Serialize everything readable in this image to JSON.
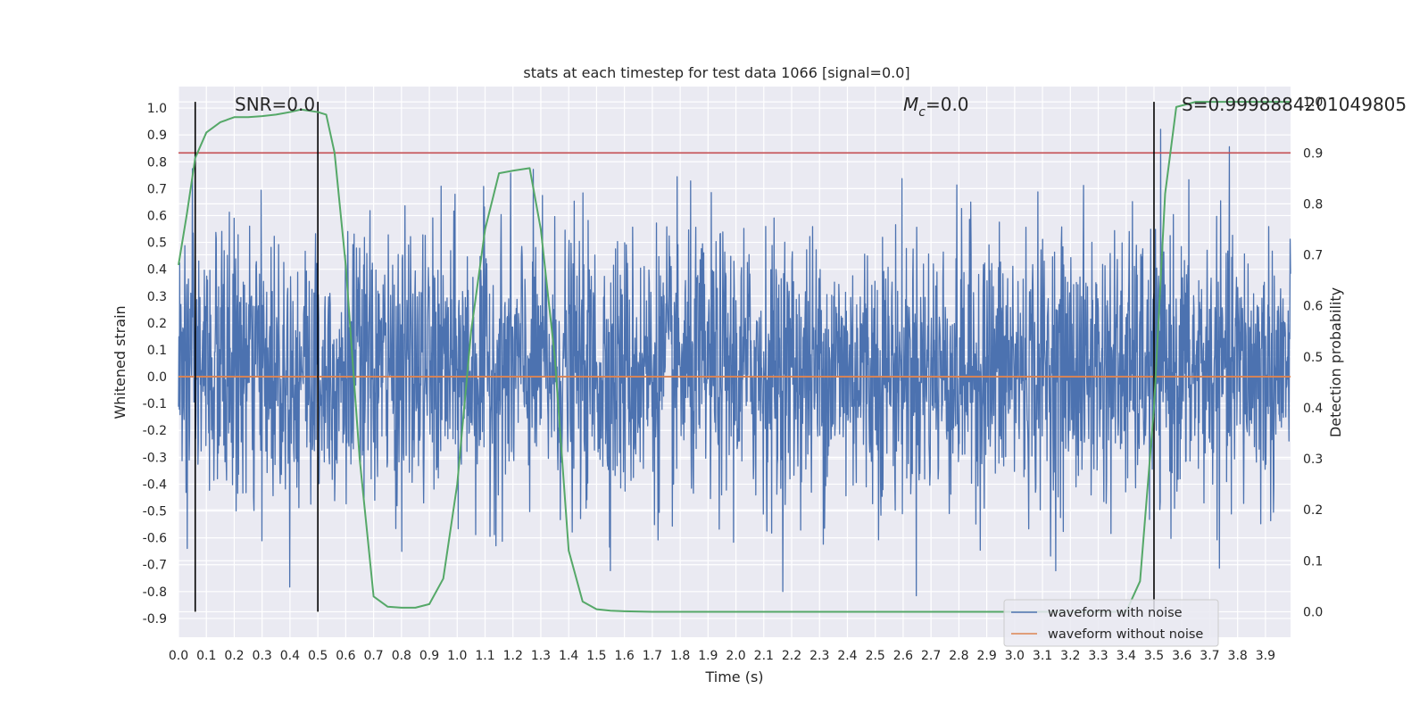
{
  "chart_data": {
    "type": "line",
    "title": "stats at each timestep for test data 1066 [signal=0.0]",
    "xlabel": "Time (s)",
    "ylabel": "Whitened strain",
    "y2label": "Detection probability",
    "xlim": [
      0.0,
      3.99
    ],
    "ylim": [
      -0.97,
      1.08
    ],
    "y2lim": [
      -0.05,
      1.03
    ],
    "x_ticks": [
      0.0,
      0.1,
      0.2,
      0.3,
      0.4,
      0.5,
      0.6,
      0.7,
      0.8,
      0.9,
      1.0,
      1.1,
      1.2,
      1.3,
      1.4,
      1.5,
      1.6,
      1.7,
      1.8,
      1.9,
      2.0,
      2.1,
      2.2,
      2.3,
      2.4,
      2.5,
      2.6,
      2.7,
      2.8,
      2.9,
      3.0,
      3.1,
      3.2,
      3.3,
      3.4,
      3.5,
      3.6,
      3.7,
      3.8,
      3.9
    ],
    "x_tick_labels": [
      "0.0",
      "0.1",
      "0.2",
      "0.3",
      "0.4",
      "0.5",
      "0.6",
      "0.7",
      "0.8",
      "0.9",
      "1.0",
      "1.1",
      "1.2",
      "1.3",
      "1.4",
      "1.5",
      "1.6",
      "1.7",
      "1.8",
      "1.9",
      "2.0",
      "2.1",
      "2.2",
      "2.3",
      "2.4",
      "2.5",
      "2.6",
      "2.7",
      "2.8",
      "2.9",
      "3.0",
      "3.1",
      "3.2",
      "3.3",
      "3.4",
      "3.5",
      "3.6",
      "3.7",
      "3.8",
      "3.9"
    ],
    "y_ticks": [
      1.0,
      0.9,
      0.8,
      0.7,
      0.6,
      0.5,
      0.4,
      0.3,
      0.2,
      0.1,
      0.0,
      -0.1,
      -0.2,
      -0.3,
      -0.4,
      -0.5,
      -0.6,
      -0.7,
      -0.8,
      -0.9
    ],
    "y_tick_labels": [
      "1.0",
      "0.9",
      "0.8",
      "0.7",
      "0.6",
      "0.5",
      "0.4",
      "0.3",
      "0.2",
      "0.1",
      "0.0",
      "-0.1",
      "-0.2",
      "-0.3",
      "-0.4",
      "-0.5",
      "-0.6",
      "-0.7",
      "-0.8",
      "-0.9"
    ],
    "y2_ticks": [
      1.0,
      0.9,
      0.8,
      0.7,
      0.6,
      0.5,
      0.4,
      0.3,
      0.2,
      0.1,
      0.0
    ],
    "y2_tick_labels": [
      "1.0",
      "0.9",
      "0.8",
      "0.7",
      "0.6",
      "0.5",
      "0.4",
      "0.3",
      "0.2",
      "0.1",
      "0.0"
    ],
    "grid": true,
    "legend_position": "bottom-right",
    "series": [
      {
        "name": "waveform with noise",
        "color": "#4c72b0",
        "kind": "noise",
        "amplitude_range": [
          -0.88,
          1.0
        ],
        "n_points": 2800
      },
      {
        "name": "waveform without noise",
        "color": "#dd8452",
        "kind": "constant",
        "value": 0.0
      }
    ],
    "probability_series": {
      "color": "#55a868",
      "x": [
        0.0,
        0.03,
        0.06,
        0.1,
        0.15,
        0.2,
        0.25,
        0.3,
        0.35,
        0.4,
        0.44,
        0.5,
        0.53,
        0.56,
        0.6,
        0.65,
        0.7,
        0.75,
        0.8,
        0.85,
        0.9,
        0.95,
        1.0,
        1.05,
        1.1,
        1.15,
        1.2,
        1.26,
        1.3,
        1.35,
        1.4,
        1.45,
        1.5,
        1.55,
        1.6,
        1.7,
        2.0,
        2.5,
        3.0,
        3.2,
        3.4,
        3.45,
        3.5,
        3.54,
        3.58,
        3.65,
        3.8,
        3.99
      ],
      "y": [
        0.68,
        0.78,
        0.89,
        0.94,
        0.96,
        0.97,
        0.97,
        0.972,
        0.975,
        0.98,
        0.985,
        0.98,
        0.975,
        0.9,
        0.68,
        0.3,
        0.03,
        0.01,
        0.008,
        0.008,
        0.015,
        0.065,
        0.25,
        0.55,
        0.75,
        0.86,
        0.865,
        0.87,
        0.75,
        0.5,
        0.12,
        0.02,
        0.005,
        0.002,
        0.001,
        0.0,
        0.0,
        0.0,
        0.0,
        0.0,
        0.0,
        0.06,
        0.4,
        0.82,
        0.99,
        1.0,
        1.0,
        1.0
      ]
    },
    "threshold_line": {
      "color": "#c44e52",
      "value": 0.9
    },
    "vertical_lines": [
      0.06,
      0.5,
      3.5
    ],
    "annotations": {
      "snr": "SNR=0.0",
      "mc_symbol": "M",
      "mc_sub": "c",
      "mc_value": "=0.0",
      "s_value": "S=0.9998884201049805"
    }
  }
}
